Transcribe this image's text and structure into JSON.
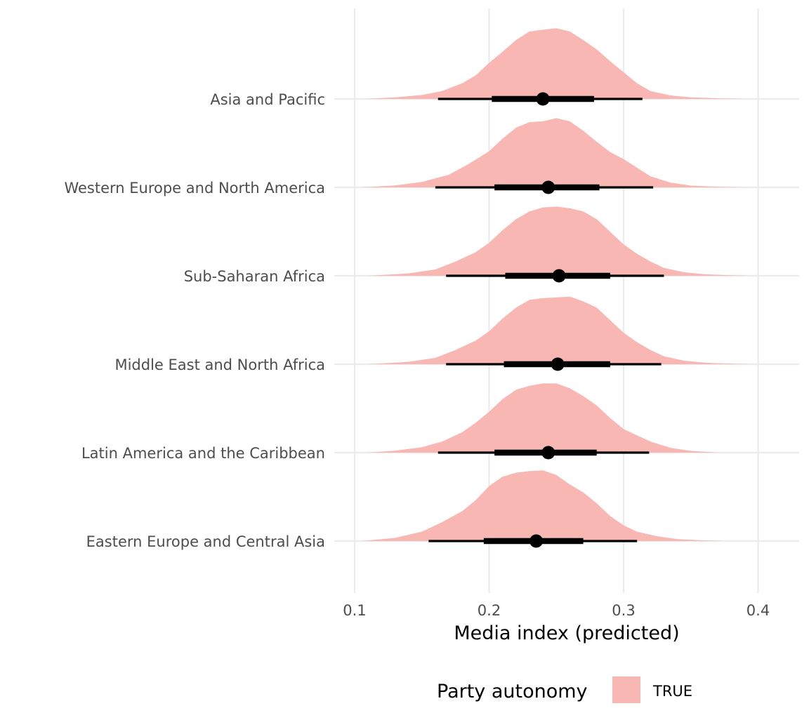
{
  "chart_data": {
    "type": "halfeye",
    "title": "",
    "xlabel": "Media index (predicted)",
    "ylabel": "",
    "xlim": [
      0.085,
      0.43
    ],
    "x_ticks": [
      0.1,
      0.2,
      0.3,
      0.4
    ],
    "x_tick_labels": [
      "0.1",
      "0.2",
      "0.3",
      "0.4"
    ],
    "fill_color": "#F8B7B3",
    "point_color": "#000000",
    "categories": [
      "Asia and Pacific",
      "Western Europe and North America",
      "Sub-Saharan Africa",
      "Middle East and North Africa",
      "Latin America and the Caribbean",
      "Eastern Europe and Central Asia"
    ],
    "series": [
      {
        "name": "Asia and Pacific",
        "median": 0.24,
        "interval_66": [
          0.202,
          0.278
        ],
        "interval_95": [
          0.162,
          0.314
        ],
        "density": [
          [
            0.108,
            0
          ],
          [
            0.13,
            0.02
          ],
          [
            0.15,
            0.05
          ],
          [
            0.165,
            0.1
          ],
          [
            0.18,
            0.2
          ],
          [
            0.19,
            0.3
          ],
          [
            0.2,
            0.46
          ],
          [
            0.21,
            0.6
          ],
          [
            0.22,
            0.75
          ],
          [
            0.23,
            0.86
          ],
          [
            0.24,
            0.88
          ],
          [
            0.25,
            0.9
          ],
          [
            0.26,
            0.86
          ],
          [
            0.27,
            0.75
          ],
          [
            0.28,
            0.63
          ],
          [
            0.29,
            0.48
          ],
          [
            0.3,
            0.34
          ],
          [
            0.31,
            0.2
          ],
          [
            0.32,
            0.1
          ],
          [
            0.335,
            0.045
          ],
          [
            0.35,
            0.02
          ],
          [
            0.37,
            0.008
          ],
          [
            0.39,
            0
          ]
        ]
      },
      {
        "name": "Western Europe and North America",
        "median": 0.244,
        "interval_66": [
          0.204,
          0.282
        ],
        "interval_95": [
          0.16,
          0.322
        ],
        "density": [
          [
            0.105,
            0
          ],
          [
            0.13,
            0.025
          ],
          [
            0.15,
            0.07
          ],
          [
            0.17,
            0.16
          ],
          [
            0.185,
            0.3
          ],
          [
            0.2,
            0.46
          ],
          [
            0.21,
            0.62
          ],
          [
            0.22,
            0.76
          ],
          [
            0.23,
            0.83
          ],
          [
            0.24,
            0.84
          ],
          [
            0.25,
            0.88
          ],
          [
            0.26,
            0.84
          ],
          [
            0.27,
            0.72
          ],
          [
            0.28,
            0.58
          ],
          [
            0.29,
            0.45
          ],
          [
            0.3,
            0.36
          ],
          [
            0.31,
            0.25
          ],
          [
            0.32,
            0.14
          ],
          [
            0.335,
            0.06
          ],
          [
            0.35,
            0.022
          ],
          [
            0.37,
            0.008
          ],
          [
            0.39,
            0
          ]
        ]
      },
      {
        "name": "Sub-Saharan Africa",
        "median": 0.252,
        "interval_66": [
          0.212,
          0.29
        ],
        "interval_95": [
          0.168,
          0.33
        ],
        "density": [
          [
            0.11,
            0
          ],
          [
            0.14,
            0.03
          ],
          [
            0.16,
            0.08
          ],
          [
            0.175,
            0.18
          ],
          [
            0.19,
            0.3
          ],
          [
            0.2,
            0.42
          ],
          [
            0.21,
            0.58
          ],
          [
            0.22,
            0.72
          ],
          [
            0.23,
            0.82
          ],
          [
            0.24,
            0.87
          ],
          [
            0.25,
            0.88
          ],
          [
            0.26,
            0.86
          ],
          [
            0.27,
            0.82
          ],
          [
            0.28,
            0.72
          ],
          [
            0.29,
            0.56
          ],
          [
            0.3,
            0.4
          ],
          [
            0.31,
            0.28
          ],
          [
            0.32,
            0.18
          ],
          [
            0.33,
            0.1
          ],
          [
            0.345,
            0.045
          ],
          [
            0.36,
            0.02
          ],
          [
            0.38,
            0.006
          ],
          [
            0.395,
            0
          ]
        ]
      },
      {
        "name": "Middle East and North Africa",
        "median": 0.251,
        "interval_66": [
          0.211,
          0.29
        ],
        "interval_95": [
          0.168,
          0.328
        ],
        "density": [
          [
            0.11,
            0
          ],
          [
            0.14,
            0.03
          ],
          [
            0.16,
            0.08
          ],
          [
            0.175,
            0.18
          ],
          [
            0.19,
            0.3
          ],
          [
            0.2,
            0.42
          ],
          [
            0.21,
            0.58
          ],
          [
            0.22,
            0.72
          ],
          [
            0.23,
            0.82
          ],
          [
            0.24,
            0.84
          ],
          [
            0.25,
            0.85
          ],
          [
            0.26,
            0.86
          ],
          [
            0.27,
            0.8
          ],
          [
            0.28,
            0.72
          ],
          [
            0.29,
            0.56
          ],
          [
            0.3,
            0.4
          ],
          [
            0.31,
            0.28
          ],
          [
            0.32,
            0.18
          ],
          [
            0.33,
            0.1
          ],
          [
            0.345,
            0.045
          ],
          [
            0.36,
            0.02
          ],
          [
            0.38,
            0.006
          ],
          [
            0.395,
            0
          ]
        ]
      },
      {
        "name": "Latin America and the Caribbean",
        "median": 0.244,
        "interval_66": [
          0.204,
          0.28
        ],
        "interval_95": [
          0.162,
          0.319
        ],
        "density": [
          [
            0.11,
            0
          ],
          [
            0.13,
            0.025
          ],
          [
            0.15,
            0.07
          ],
          [
            0.165,
            0.14
          ],
          [
            0.18,
            0.26
          ],
          [
            0.19,
            0.38
          ],
          [
            0.2,
            0.52
          ],
          [
            0.21,
            0.68
          ],
          [
            0.22,
            0.8
          ],
          [
            0.23,
            0.85
          ],
          [
            0.24,
            0.88
          ],
          [
            0.25,
            0.88
          ],
          [
            0.26,
            0.82
          ],
          [
            0.27,
            0.72
          ],
          [
            0.28,
            0.6
          ],
          [
            0.29,
            0.44
          ],
          [
            0.3,
            0.3
          ],
          [
            0.31,
            0.22
          ],
          [
            0.32,
            0.14
          ],
          [
            0.335,
            0.06
          ],
          [
            0.35,
            0.022
          ],
          [
            0.37,
            0
          ]
        ]
      },
      {
        "name": "Eastern Europe and Central Asia",
        "median": 0.235,
        "interval_66": [
          0.196,
          0.27
        ],
        "interval_95": [
          0.155,
          0.31
        ],
        "density": [
          [
            0.105,
            0
          ],
          [
            0.13,
            0.04
          ],
          [
            0.15,
            0.12
          ],
          [
            0.165,
            0.24
          ],
          [
            0.18,
            0.38
          ],
          [
            0.19,
            0.52
          ],
          [
            0.2,
            0.7
          ],
          [
            0.21,
            0.82
          ],
          [
            0.22,
            0.87
          ],
          [
            0.23,
            0.89
          ],
          [
            0.24,
            0.9
          ],
          [
            0.25,
            0.84
          ],
          [
            0.26,
            0.72
          ],
          [
            0.27,
            0.62
          ],
          [
            0.28,
            0.48
          ],
          [
            0.29,
            0.32
          ],
          [
            0.3,
            0.2
          ],
          [
            0.31,
            0.12
          ],
          [
            0.325,
            0.06
          ],
          [
            0.34,
            0.025
          ],
          [
            0.36,
            0.008
          ],
          [
            0.375,
            0
          ]
        ]
      }
    ],
    "legend": {
      "title": "Party autonomy",
      "entries": [
        {
          "label": "TRUE",
          "color": "#F8B7B3"
        }
      ],
      "position": "bottom"
    }
  }
}
